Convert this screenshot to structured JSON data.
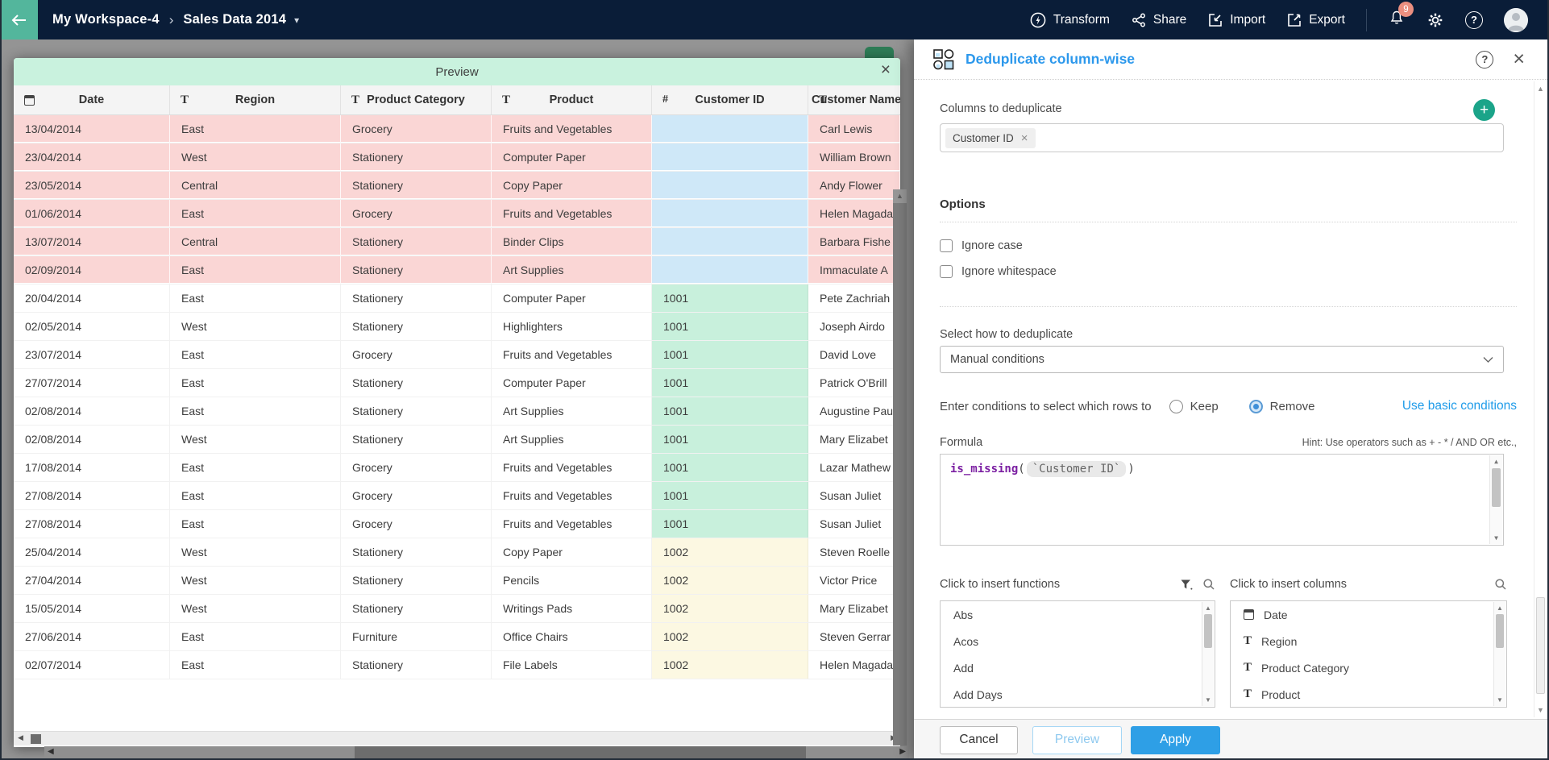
{
  "topbar": {
    "breadcrumb": {
      "workspace": "My Workspace-4",
      "dataset": "Sales Data 2014"
    },
    "actions": [
      {
        "label": "Transform"
      },
      {
        "label": "Share"
      },
      {
        "label": "Import"
      },
      {
        "label": "Export"
      }
    ],
    "notification_count": "9",
    "help_glyph": "?"
  },
  "preview": {
    "title": "Preview",
    "close_glyph": "×",
    "columns": [
      {
        "type": "date",
        "label": "Date"
      },
      {
        "type": "text",
        "label": "Region"
      },
      {
        "type": "text",
        "label": "Product Category"
      },
      {
        "type": "text",
        "label": "Product"
      },
      {
        "type": "number",
        "label": "Customer ID"
      },
      {
        "type": "text",
        "label": "Customer Name"
      }
    ],
    "rows": [
      {
        "date": "13/04/2014",
        "region": "East",
        "category": "Grocery",
        "product": "Fruits and Vegetables",
        "customer_id": "",
        "customer_name": "Carl Lewis",
        "tone": "missing",
        "id_tone": "blue"
      },
      {
        "date": "23/04/2014",
        "region": "West",
        "category": "Stationery",
        "product": "Computer Paper",
        "customer_id": "",
        "customer_name": "William Brown",
        "tone": "missing",
        "id_tone": "blue"
      },
      {
        "date": "23/05/2014",
        "region": "Central",
        "category": "Stationery",
        "product": "Copy Paper",
        "customer_id": "",
        "customer_name": "Andy Flower",
        "tone": "missing",
        "id_tone": "blue"
      },
      {
        "date": "01/06/2014",
        "region": "East",
        "category": "Grocery",
        "product": "Fruits and Vegetables",
        "customer_id": "",
        "customer_name": "Helen Magada",
        "tone": "missing",
        "id_tone": "blue"
      },
      {
        "date": "13/07/2014",
        "region": "Central",
        "category": "Stationery",
        "product": "Binder Clips",
        "customer_id": "",
        "customer_name": "Barbara Fishe",
        "tone": "missing",
        "id_tone": "blue"
      },
      {
        "date": "02/09/2014",
        "region": "East",
        "category": "Stationery",
        "product": "Art Supplies",
        "customer_id": "",
        "customer_name": "Immaculate A",
        "tone": "missing",
        "id_tone": "blue"
      },
      {
        "date": "20/04/2014",
        "region": "East",
        "category": "Stationery",
        "product": "Computer Paper",
        "customer_id": "1001",
        "customer_name": "Pete Zachriah",
        "tone": "plain",
        "id_tone": "green"
      },
      {
        "date": "02/05/2014",
        "region": "West",
        "category": "Stationery",
        "product": "Highlighters",
        "customer_id": "1001",
        "customer_name": "Joseph Airdo",
        "tone": "plain",
        "id_tone": "green"
      },
      {
        "date": "23/07/2014",
        "region": "East",
        "category": "Grocery",
        "product": "Fruits and Vegetables",
        "customer_id": "1001",
        "customer_name": "David Love",
        "tone": "plain",
        "id_tone": "green"
      },
      {
        "date": "27/07/2014",
        "region": "East",
        "category": "Stationery",
        "product": "Computer Paper",
        "customer_id": "1001",
        "customer_name": "Patrick O'Brill",
        "tone": "plain",
        "id_tone": "green"
      },
      {
        "date": "02/08/2014",
        "region": "East",
        "category": "Stationery",
        "product": "Art Supplies",
        "customer_id": "1001",
        "customer_name": "Augustine Pau",
        "tone": "plain",
        "id_tone": "green"
      },
      {
        "date": "02/08/2014",
        "region": "West",
        "category": "Stationery",
        "product": "Art Supplies",
        "customer_id": "1001",
        "customer_name": "Mary Elizabet",
        "tone": "plain",
        "id_tone": "green"
      },
      {
        "date": "17/08/2014",
        "region": "East",
        "category": "Grocery",
        "product": "Fruits and Vegetables",
        "customer_id": "1001",
        "customer_name": "Lazar Mathew",
        "tone": "plain",
        "id_tone": "green"
      },
      {
        "date": "27/08/2014",
        "region": "East",
        "category": "Grocery",
        "product": "Fruits and Vegetables",
        "customer_id": "1001",
        "customer_name": "Susan Juliet",
        "tone": "plain",
        "id_tone": "green"
      },
      {
        "date": "27/08/2014",
        "region": "East",
        "category": "Grocery",
        "product": "Fruits and Vegetables",
        "customer_id": "1001",
        "customer_name": "Susan Juliet",
        "tone": "plain",
        "id_tone": "green"
      },
      {
        "date": "25/04/2014",
        "region": "West",
        "category": "Stationery",
        "product": "Copy Paper",
        "customer_id": "1002",
        "customer_name": "Steven Roelle",
        "tone": "plain",
        "id_tone": "yellow"
      },
      {
        "date": "27/04/2014",
        "region": "West",
        "category": "Stationery",
        "product": "Pencils",
        "customer_id": "1002",
        "customer_name": "Victor Price",
        "tone": "plain",
        "id_tone": "yellow"
      },
      {
        "date": "15/05/2014",
        "region": "West",
        "category": "Stationery",
        "product": "Writings Pads",
        "customer_id": "1002",
        "customer_name": "Mary Elizabet",
        "tone": "plain",
        "id_tone": "yellow"
      },
      {
        "date": "27/06/2014",
        "region": "East",
        "category": "Furniture",
        "product": "Office Chairs",
        "customer_id": "1002",
        "customer_name": "Steven Gerrar",
        "tone": "plain",
        "id_tone": "yellow"
      },
      {
        "date": "02/07/2014",
        "region": "East",
        "category": "Stationery",
        "product": "File Labels",
        "customer_id": "1002",
        "customer_name": "Helen Magada",
        "tone": "plain",
        "id_tone": "yellow"
      }
    ]
  },
  "panel": {
    "title": "Deduplicate column-wise",
    "help_glyph": "?",
    "close_glyph": "×",
    "columns_to_deduplicate": {
      "label": "Columns to deduplicate",
      "chips": [
        {
          "label": "Customer ID",
          "remove_glyph": "×"
        }
      ]
    },
    "options": {
      "heading": "Options",
      "checkboxes": [
        {
          "label": "Ignore case",
          "checked": false
        },
        {
          "label": "Ignore whitespace",
          "checked": false
        }
      ]
    },
    "dedupe_method": {
      "label": "Select how to deduplicate",
      "value": "Manual conditions"
    },
    "conditions": {
      "label": "Enter conditions to select which rows to",
      "radios": [
        {
          "label": "Keep",
          "selected": false
        },
        {
          "label": "Remove",
          "selected": true
        }
      ],
      "link": "Use basic conditions"
    },
    "formula": {
      "label": "Formula",
      "hint": "Hint: Use operators such as + - * / AND OR etc.,",
      "function": "is_missing",
      "open_paren": "(",
      "token": "`Customer ID`",
      "close_paren": ")"
    },
    "functions_list": {
      "label": "Click to insert functions",
      "items": [
        "Abs",
        "Acos",
        "Add",
        "Add Days"
      ]
    },
    "columns_list": {
      "label": "Click to insert columns",
      "items": [
        {
          "type": "date",
          "label": "Date"
        },
        {
          "type": "text",
          "label": "Region"
        },
        {
          "type": "text",
          "label": "Product Category"
        },
        {
          "type": "text",
          "label": "Product"
        }
      ]
    },
    "footer": {
      "cancel": "Cancel",
      "preview": "Preview",
      "apply": "Apply"
    }
  },
  "colors": {
    "topbar_bg": "#0a1d38",
    "back_button": "#53b69c",
    "title_blue": "#2c98ec",
    "apply_blue": "#2e9fe6",
    "link_blue": "#1e9be9",
    "plus_teal": "#1ba489",
    "preview_titlebar": "#c9f2de",
    "row_missing_pink": "#fad6d5",
    "id_missing_blue": "#cfe8f8",
    "id_group_green": "#c8f0dc",
    "id_group_yellow": "#fcf8e2",
    "badge_salmon": "#eb8f80",
    "formula_function_purple": "#7b1fa2"
  }
}
